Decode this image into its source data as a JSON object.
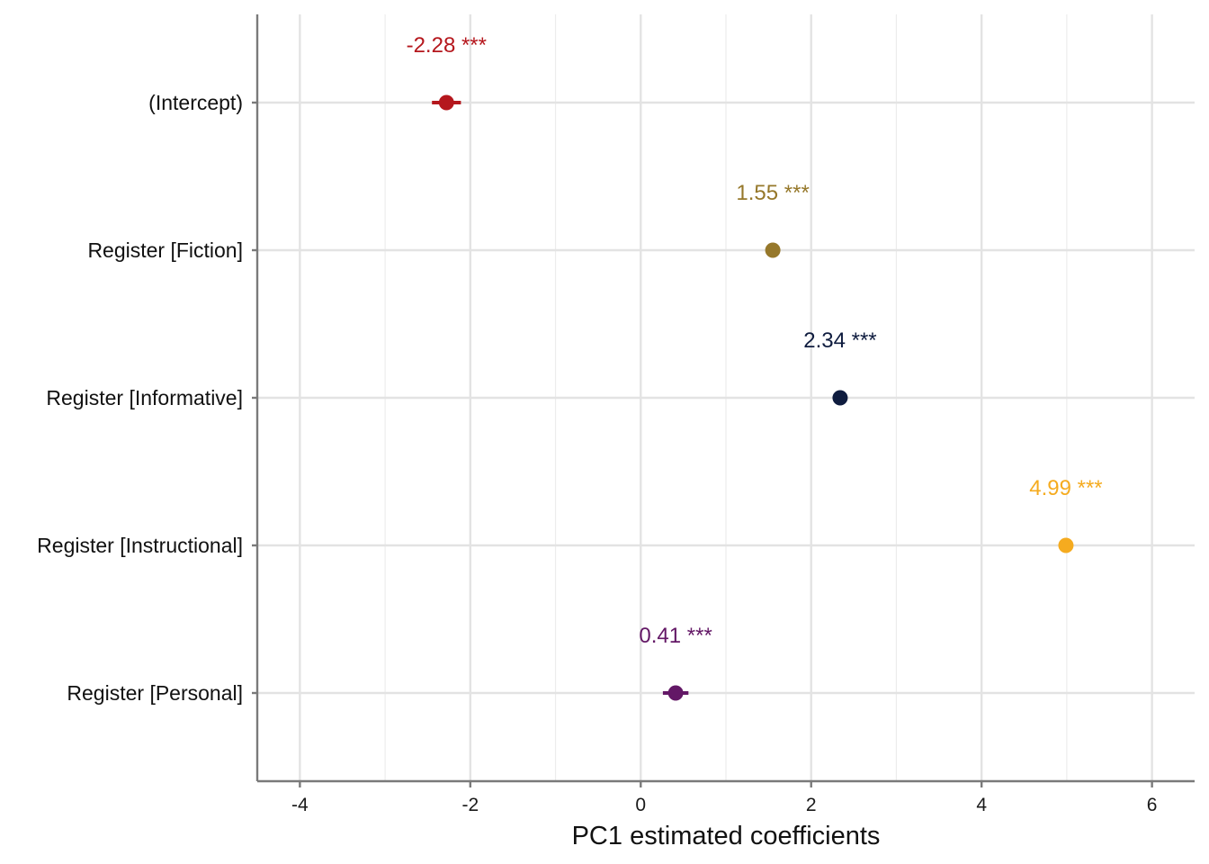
{
  "chart_data": {
    "type": "scatter",
    "subtype": "coefficient-plot",
    "title": "",
    "xlabel": "PC1 estimated coefficients",
    "ylabel": "",
    "xlim": [
      -4.5,
      6.5
    ],
    "xticks": [
      -4,
      -2,
      0,
      2,
      4,
      6
    ],
    "grid": true,
    "legend": "none",
    "categories": [
      "(Intercept)",
      "Register [Fiction]",
      "Register [Informative]",
      "Register [Instructional]",
      "Register [Personal]"
    ],
    "points": [
      {
        "category": "(Intercept)",
        "estimate": -2.28,
        "ci": [
          -2.45,
          -2.11
        ],
        "label": "-2.28 ***",
        "color": "#b5171d"
      },
      {
        "category": "Register [Fiction]",
        "estimate": 1.55,
        "ci": [
          1.5,
          1.6
        ],
        "label": "1.55 ***",
        "color": "#96782b"
      },
      {
        "category": "Register [Informative]",
        "estimate": 2.34,
        "ci": [
          2.3,
          2.38
        ],
        "label": "2.34 ***",
        "color": "#0f1c3f"
      },
      {
        "category": "Register [Instructional]",
        "estimate": 4.99,
        "ci": [
          4.95,
          5.03
        ],
        "label": "4.99 ***",
        "color": "#f5ab1f"
      },
      {
        "category": "Register [Personal]",
        "estimate": 0.41,
        "ci": [
          0.26,
          0.56
        ],
        "label": "0.41 ***",
        "color": "#631866"
      }
    ]
  }
}
